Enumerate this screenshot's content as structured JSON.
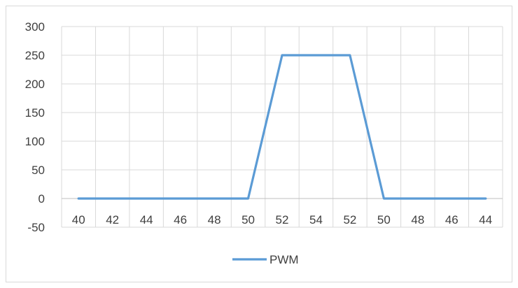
{
  "chart_data": {
    "type": "line",
    "categories": [
      "40",
      "42",
      "44",
      "46",
      "48",
      "50",
      "52",
      "54",
      "52",
      "50",
      "48",
      "46",
      "44"
    ],
    "series": [
      {
        "name": "PWM",
        "values": [
          0,
          0,
          0,
          0,
          0,
          0,
          250,
          250,
          250,
          0,
          0,
          0,
          0
        ],
        "color": "#5b9bd5"
      }
    ],
    "y_ticks": [
      "300",
      "250",
      "200",
      "150",
      "100",
      "50",
      "0",
      "-50"
    ],
    "ylim": [
      -50,
      300
    ],
    "y_step": 50,
    "grid": true,
    "legend_position": "bottom",
    "title": "",
    "xlabel": "",
    "ylabel": ""
  }
}
